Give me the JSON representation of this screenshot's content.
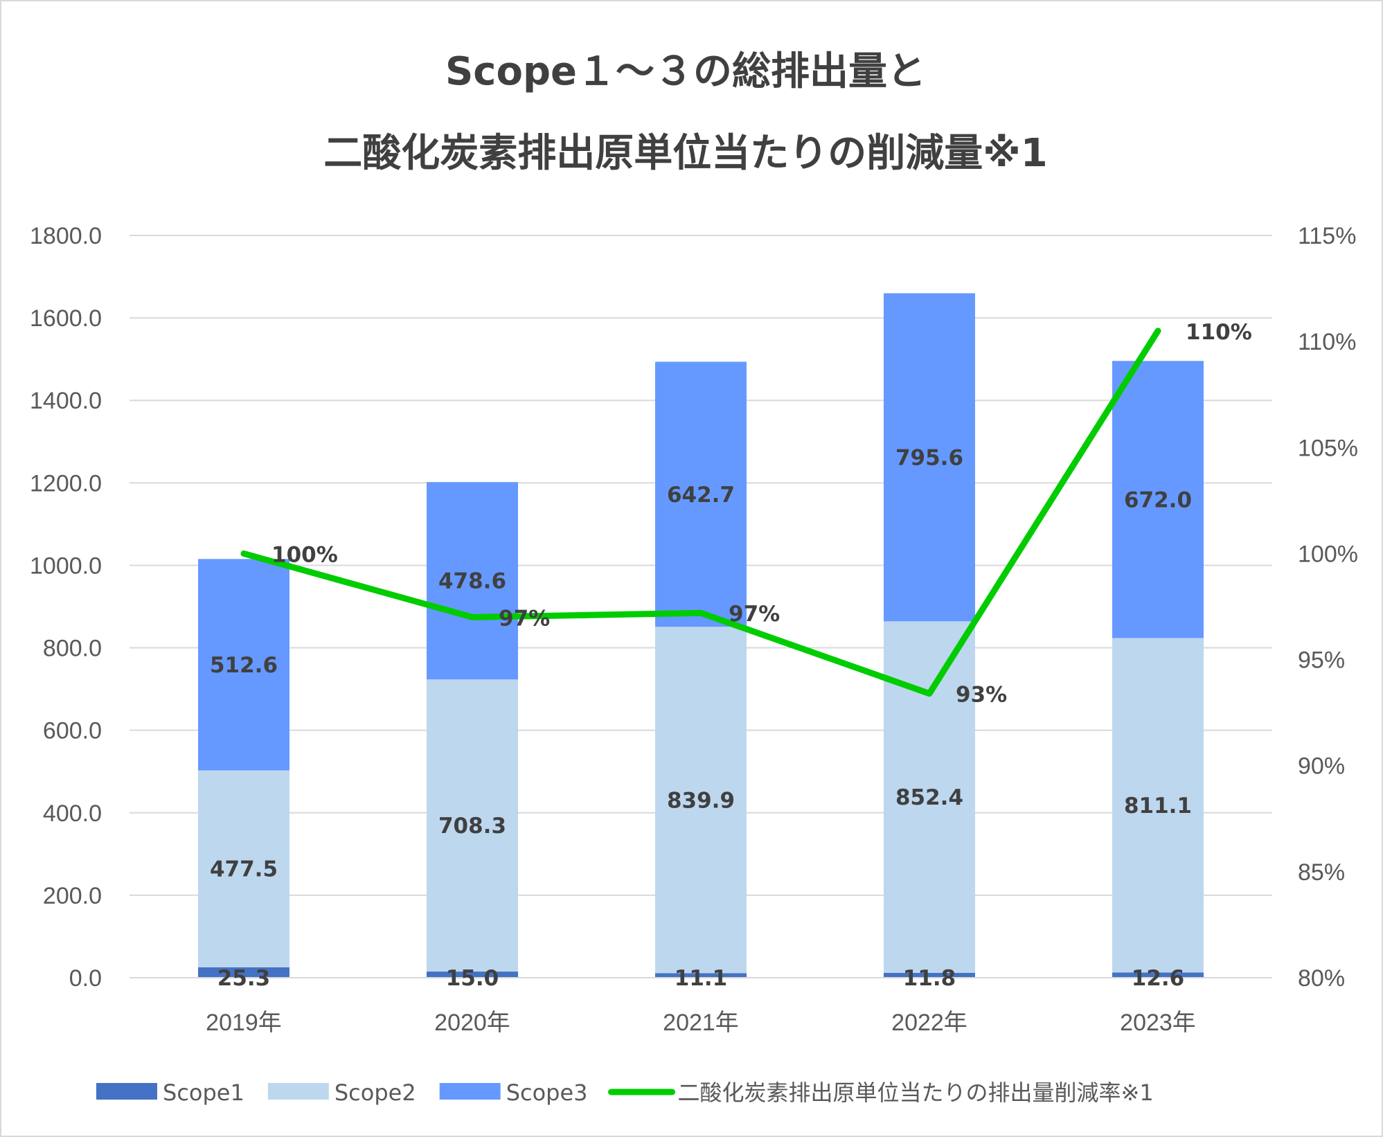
{
  "chart_data": {
    "type": "bar",
    "stacked": true,
    "title_lines": [
      "Scope１～３の総排出量と",
      "二酸化炭素排出原単位当たりの削減量※1"
    ],
    "categories": [
      "2019年",
      "2020年",
      "2021年",
      "2022年",
      "2023年"
    ],
    "series": [
      {
        "name": "Scope1",
        "type": "bar",
        "axis": "left",
        "color": "#4472c4",
        "values": [
          25.3,
          15.0,
          11.1,
          11.8,
          12.6
        ],
        "labels": [
          "25.3",
          "15.0",
          "11.1",
          "11.8",
          "12.6"
        ]
      },
      {
        "name": "Scope2",
        "type": "bar",
        "axis": "left",
        "color": "#bdd7ee",
        "values": [
          477.5,
          708.3,
          839.9,
          852.4,
          811.1
        ],
        "labels": [
          "477.5",
          "708.3",
          "839.9",
          "852.4",
          "811.1"
        ]
      },
      {
        "name": "Scope3",
        "type": "bar",
        "axis": "left",
        "color": "#6699ff",
        "values": [
          512.6,
          478.6,
          642.7,
          795.6,
          672.0
        ],
        "labels": [
          "512.6",
          "478.6",
          "642.7",
          "795.6",
          "672.0"
        ]
      },
      {
        "name": "二酸化炭素排出原単位当たりの排出量削減率※1",
        "type": "line",
        "axis": "right",
        "color": "#00cc00",
        "values": [
          100,
          97,
          97.2,
          93.4,
          110.5
        ],
        "labels": [
          "100%",
          "97%",
          "97%",
          "93%",
          "110%"
        ]
      }
    ],
    "y_left": {
      "min": 0,
      "max": 1800,
      "step": 200,
      "ticks": [
        "0.0",
        "200.0",
        "400.0",
        "600.0",
        "800.0",
        "1000.0",
        "1200.0",
        "1400.0",
        "1600.0",
        "1800.0"
      ]
    },
    "y_right": {
      "min": 80,
      "max": 115,
      "step": 5,
      "ticks": [
        "80%",
        "85%",
        "90%",
        "95%",
        "100%",
        "105%",
        "110%",
        "115%"
      ]
    },
    "grid": true,
    "legend_position": "bottom"
  }
}
